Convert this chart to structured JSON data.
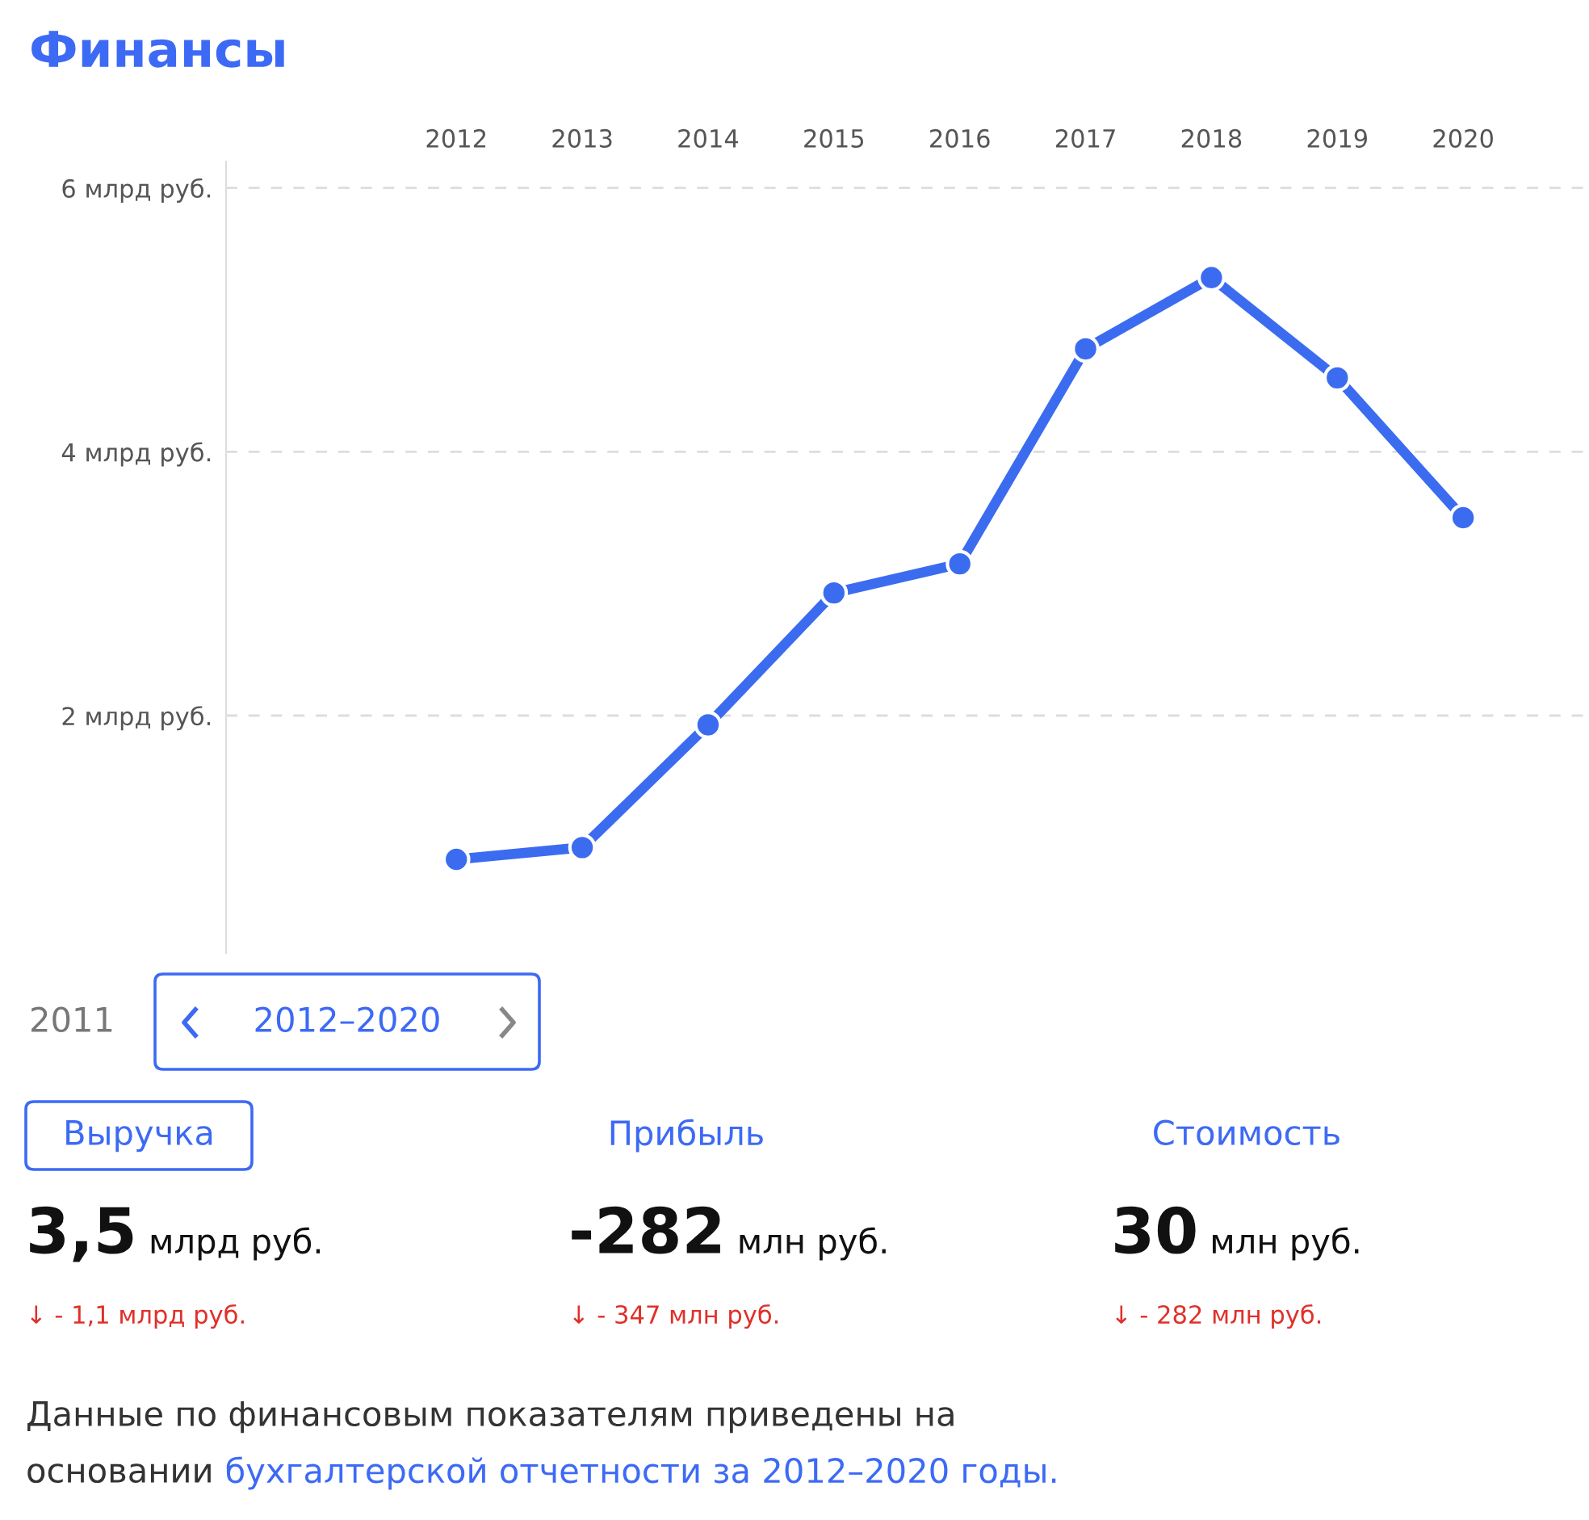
{
  "chart_data": {
    "type": "line",
    "title": "Финансы",
    "categories": [
      "2012",
      "2013",
      "2014",
      "2015",
      "2016",
      "2017",
      "2018",
      "2019",
      "2020"
    ],
    "series": [
      {
        "color": "#3b6cf0",
        "values": [
          0.91,
          1.0,
          1.93,
          2.93,
          3.15,
          4.78,
          5.32,
          4.56,
          3.5
        ]
      }
    ],
    "yticks": [
      {
        "value": 2,
        "label": "2 млрд руб."
      },
      {
        "value": 4,
        "label": "4 млрд руб."
      },
      {
        "value": 6,
        "label": "6 млрд руб."
      }
    ],
    "ylim": [
      0.2,
      6.2
    ],
    "grid": "y",
    "marker": "circle",
    "line_style": "solid",
    "annotations": [
      "2011",
      "2012–2020",
      "Выручка",
      "Прибыль",
      "Стоимость",
      "3,5",
      "млрд руб.",
      "-282",
      "млн руб.",
      "30",
      "млн руб.",
      "↓ - 1,1 млрд руб.",
      "↓ - 347 млн руб.",
      "↓ - 282 млн руб.",
      "Данные по финансовым показателям приведены на",
      "основании",
      "бухгалтерской отчетности за 2012–2020 годы."
    ]
  }
}
